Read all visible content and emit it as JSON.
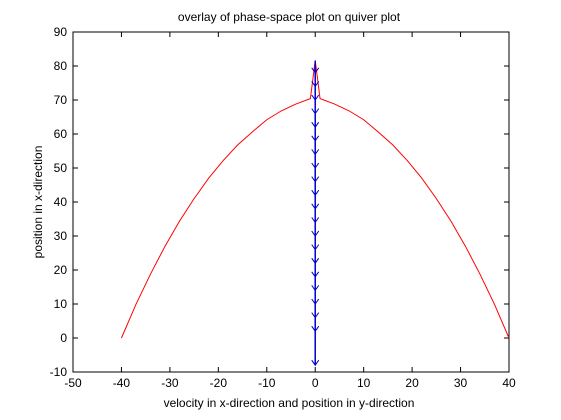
{
  "chart_data": {
    "type": "line",
    "title": "overlay of phase-space plot on quiver plot",
    "xlabel": "velocity in x-direction and position in y-direction",
    "ylabel": "position in x-direction",
    "xlim": [
      -50,
      40
    ],
    "ylim": [
      -10,
      90
    ],
    "xticks": [
      -50,
      -40,
      -30,
      -20,
      -10,
      0,
      10,
      20,
      30,
      40
    ],
    "yticks": [
      -10,
      0,
      10,
      20,
      30,
      40,
      50,
      60,
      70,
      80,
      90
    ],
    "grid": false,
    "series": [
      {
        "kind": "line",
        "color": "#ff0000",
        "x": [
          -40,
          -37,
          -34,
          -31,
          -28,
          -25,
          -22,
          -19,
          -16,
          -13,
          -10,
          -7,
          -4,
          -1,
          0,
          1,
          4,
          7,
          10,
          13,
          16,
          19,
          22,
          25,
          28,
          31,
          34,
          37,
          40
        ],
        "y": [
          0,
          9.9,
          18.8,
          27.0,
          34.4,
          41.0,
          47.0,
          52.2,
          56.8,
          60.6,
          64.2,
          66.8,
          68.8,
          70.4,
          81.6,
          70.4,
          68.8,
          66.8,
          64.2,
          60.6,
          56.8,
          52.2,
          47.0,
          41.0,
          34.4,
          27.0,
          18.8,
          9.9,
          0
        ]
      },
      {
        "kind": "quiver",
        "color": "#0000cc",
        "x": 0,
        "y_start": 81.6,
        "y_end": -8.0,
        "arrow_positions": [
          78,
          74,
          70,
          66,
          62,
          58,
          54,
          50,
          46,
          42,
          38,
          34,
          30,
          26,
          22,
          18,
          14,
          10,
          6,
          2,
          -8
        ]
      }
    ]
  }
}
